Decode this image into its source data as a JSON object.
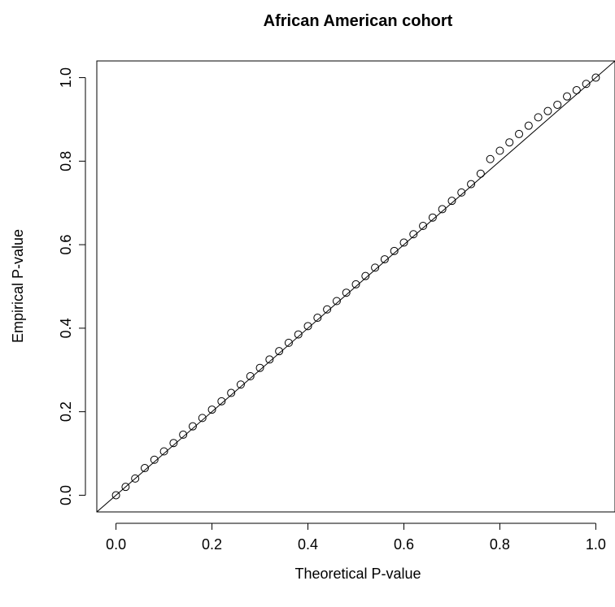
{
  "chart_data": {
    "type": "scatter",
    "title": "African American cohort",
    "xlabel": "Theoretical P-value",
    "ylabel": "Empirical P-value",
    "xlim": [
      -0.04,
      1.04
    ],
    "ylim": [
      -0.04,
      1.04
    ],
    "x_ticks": [
      0.0,
      0.2,
      0.4,
      0.6,
      0.8,
      1.0
    ],
    "y_ticks": [
      0.0,
      0.2,
      0.4,
      0.6,
      0.8,
      1.0
    ],
    "x_tick_labels": [
      "0.0",
      "0.2",
      "0.4",
      "0.6",
      "0.8",
      "1.0"
    ],
    "y_tick_labels": [
      "0.0",
      "0.2",
      "0.4",
      "0.6",
      "0.8",
      "1.0"
    ],
    "grid": false,
    "legend": "none",
    "marker": "open-circle",
    "reference_line": {
      "from": [
        -0.04,
        -0.04
      ],
      "to": [
        1.04,
        1.04
      ]
    },
    "points": {
      "x": [
        0.0,
        0.02,
        0.04,
        0.06,
        0.08,
        0.1,
        0.12,
        0.14,
        0.16,
        0.18,
        0.2,
        0.22,
        0.24,
        0.26,
        0.28,
        0.3,
        0.32,
        0.34,
        0.36,
        0.38,
        0.4,
        0.42,
        0.44,
        0.46,
        0.48,
        0.5,
        0.52,
        0.54,
        0.56,
        0.58,
        0.6,
        0.62,
        0.64,
        0.66,
        0.68,
        0.7,
        0.72,
        0.74,
        0.76,
        0.78,
        0.8,
        0.82,
        0.84,
        0.86,
        0.88,
        0.9,
        0.92,
        0.94,
        0.96,
        0.98,
        1.0
      ],
      "y": [
        0.0,
        0.02,
        0.04,
        0.065,
        0.085,
        0.105,
        0.125,
        0.145,
        0.165,
        0.185,
        0.205,
        0.225,
        0.245,
        0.265,
        0.285,
        0.305,
        0.325,
        0.345,
        0.365,
        0.385,
        0.405,
        0.425,
        0.445,
        0.465,
        0.485,
        0.505,
        0.525,
        0.545,
        0.565,
        0.585,
        0.605,
        0.625,
        0.645,
        0.665,
        0.685,
        0.705,
        0.725,
        0.745,
        0.77,
        0.805,
        0.825,
        0.845,
        0.865,
        0.885,
        0.905,
        0.92,
        0.935,
        0.955,
        0.97,
        0.985,
        1.0
      ]
    }
  }
}
